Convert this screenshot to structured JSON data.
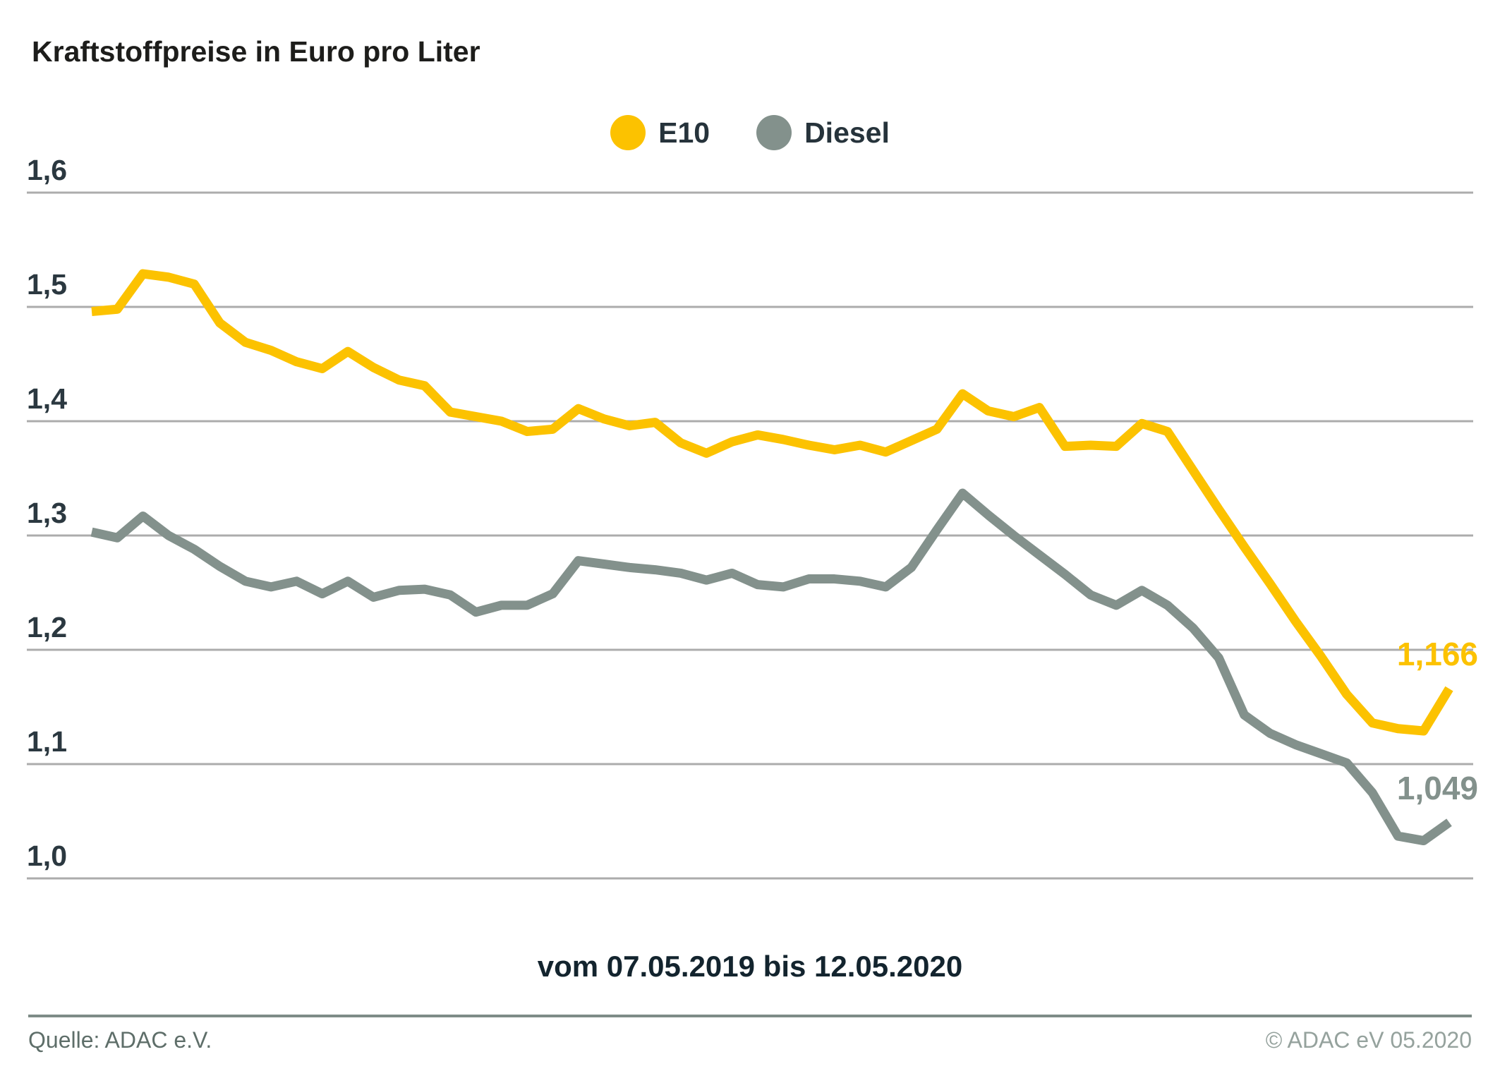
{
  "title": "Kraftstoffpreise in Euro pro Liter",
  "legend": [
    {
      "label": "E10",
      "color": "#FCC200"
    },
    {
      "label": "Diesel",
      "color": "#83918C"
    }
  ],
  "caption": "vom 07.05.2019 bis 12.05.2020",
  "footer": {
    "source": "Quelle: ADAC e.V.",
    "copyright": "© ADAC eV 05.2020"
  },
  "colors": {
    "e10": "#FCC200",
    "diesel": "#83918C",
    "grid": "#ACACAC",
    "divider": "#7E8C87",
    "axis_text": "#2B3840"
  },
  "chart_data": {
    "type": "line",
    "title": "Kraftstoffpreise in Euro pro Liter",
    "x_start": "07.05.2019",
    "x_end": "12.05.2020",
    "x_caption": "vom 07.05.2019 bis 12.05.2020",
    "ylabel": "Euro pro Liter",
    "ylim": [
      1.0,
      1.6
    ],
    "yticks": [
      1.6,
      1.5,
      1.4,
      1.3,
      1.2,
      1.1,
      1.0
    ],
    "ytick_labels": [
      "1,6",
      "1,5",
      "1,4",
      "1,3",
      "1,2",
      "1,1",
      "1,0"
    ],
    "grid": true,
    "legend_position": "top-center",
    "series": [
      {
        "name": "E10",
        "color": "#FCC200",
        "end_label": "1,166",
        "end_value": 1.166,
        "values": [
          1.496,
          1.498,
          1.529,
          1.526,
          1.52,
          1.486,
          1.469,
          1.462,
          1.452,
          1.446,
          1.461,
          1.447,
          1.436,
          1.431,
          1.408,
          1.404,
          1.4,
          1.391,
          1.393,
          1.411,
          1.402,
          1.396,
          1.399,
          1.381,
          1.372,
          1.382,
          1.388,
          1.384,
          1.379,
          1.375,
          1.379,
          1.373,
          1.383,
          1.393,
          1.424,
          1.409,
          1.404,
          1.412,
          1.378,
          1.379,
          1.378,
          1.398,
          1.391,
          1.357,
          1.323,
          1.29,
          1.258,
          1.225,
          1.194,
          1.161,
          1.136,
          1.131,
          1.129,
          1.166
        ]
      },
      {
        "name": "Diesel",
        "color": "#83918C",
        "end_label": "1,049",
        "end_value": 1.049,
        "values": [
          1.303,
          1.298,
          1.317,
          1.3,
          1.288,
          1.273,
          1.26,
          1.255,
          1.26,
          1.249,
          1.26,
          1.246,
          1.252,
          1.253,
          1.248,
          1.233,
          1.239,
          1.239,
          1.249,
          1.278,
          1.275,
          1.272,
          1.27,
          1.267,
          1.261,
          1.267,
          1.257,
          1.255,
          1.262,
          1.262,
          1.26,
          1.255,
          1.272,
          1.305,
          1.337,
          1.318,
          1.3,
          1.283,
          1.266,
          1.248,
          1.239,
          1.252,
          1.239,
          1.219,
          1.193,
          1.143,
          1.127,
          1.117,
          1.109,
          1.101,
          1.075,
          1.037,
          1.033,
          1.049
        ]
      }
    ]
  }
}
